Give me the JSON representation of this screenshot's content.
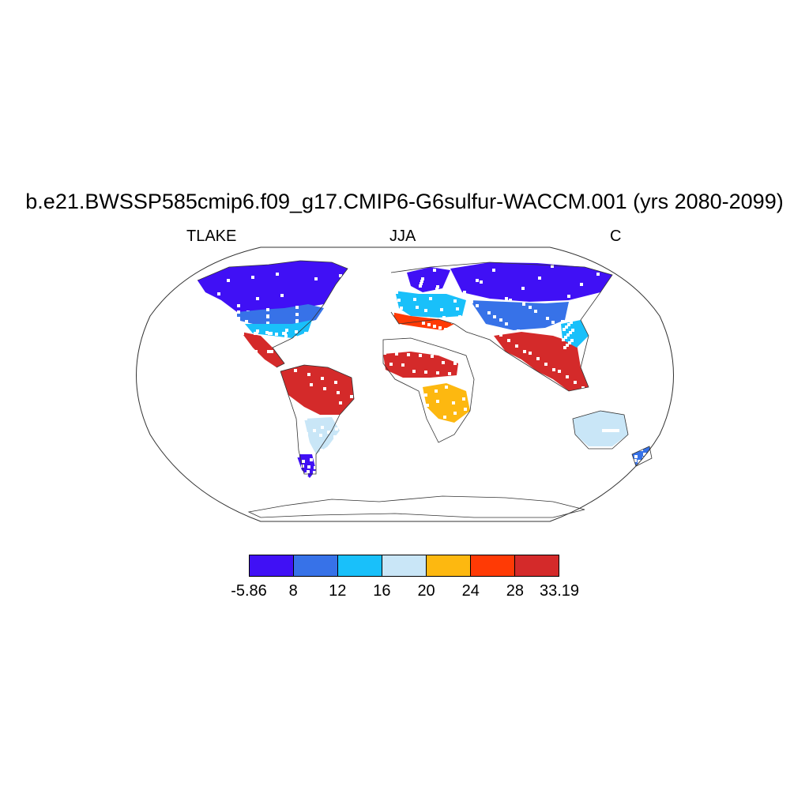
{
  "title": "b.e21.BWSSP585cmip6.f09_g17.CMIP6-G6sulfur-WACCM.001 (yrs 2080-2099)",
  "left_label": "TLAKE",
  "center_label": "JJA",
  "right_label": "C",
  "projection": "Robinson",
  "colorbar": {
    "colors": [
      "#4010f5",
      "#3772e8",
      "#19c0fa",
      "#c9e6f7",
      "#fdb810",
      "#ff3a05",
      "#d42a2a"
    ],
    "ticks": [
      "-5.86",
      "8",
      "12",
      "16",
      "20",
      "24",
      "28",
      "33.19"
    ]
  },
  "regions": [
    {
      "name": "Canada",
      "color_index": 0
    },
    {
      "name": "USA north",
      "color_index": 1
    },
    {
      "name": "USA south",
      "color_index": 2
    },
    {
      "name": "Mexico / Central America",
      "color_index": 6
    },
    {
      "name": "Amazon",
      "color_index": 6
    },
    {
      "name": "South America south",
      "color_index": 3
    },
    {
      "name": "Patagonia",
      "color_index": 0
    },
    {
      "name": "Scandinavia",
      "color_index": 0
    },
    {
      "name": "Europe",
      "color_index": 2
    },
    {
      "name": "Mediterranean",
      "color_index": 5
    },
    {
      "name": "Sahel",
      "color_index": 6
    },
    {
      "name": "Southern Africa",
      "color_index": 4
    },
    {
      "name": "Siberia",
      "color_index": 0
    },
    {
      "name": "Central Asia",
      "color_index": 1
    },
    {
      "name": "India / SE Asia",
      "color_index": 6
    },
    {
      "name": "Australia",
      "color_index": 3
    },
    {
      "name": "New Zealand",
      "color_index": 1
    }
  ]
}
